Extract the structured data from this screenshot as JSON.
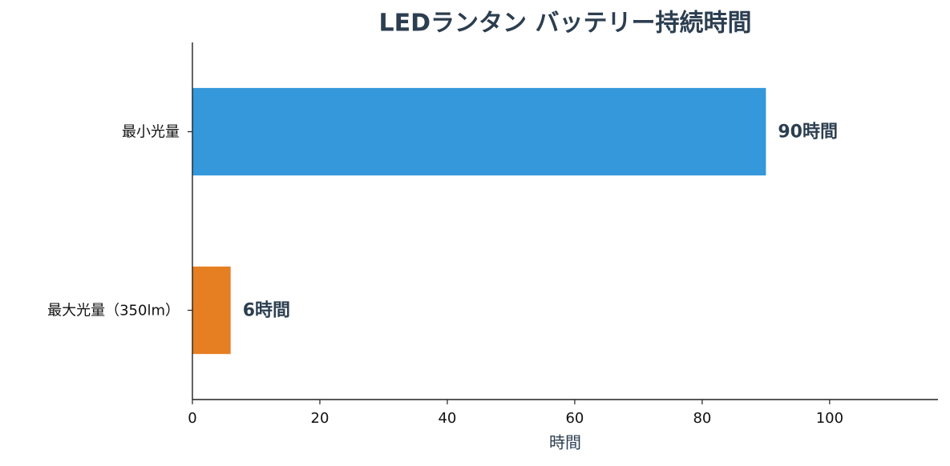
{
  "chart_data": {
    "type": "barh",
    "title": "LEDランタン バッテリー持続時間",
    "categories": [
      "最小光量",
      "最大光量（350lm）"
    ],
    "values": [
      90,
      6
    ],
    "value_labels": [
      "90時間",
      "6時間"
    ],
    "colors": [
      "#3498db",
      "#e67e22"
    ],
    "xlabel": "時間",
    "xlim": [
      0,
      117
    ],
    "xticks": [
      0,
      20,
      40,
      60,
      80,
      100
    ]
  }
}
